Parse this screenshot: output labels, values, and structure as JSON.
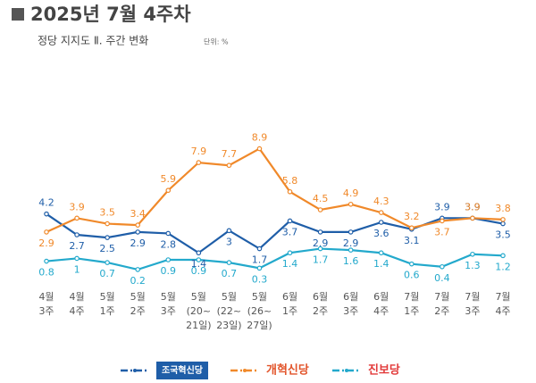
{
  "chart_data": {
    "type": "line",
    "title": "2025년 7월 4주차",
    "subtitle": "정당 지지도 Ⅱ. 주간 변화",
    "unit": "단위: %",
    "categories": [
      "4월\n3주",
      "4월\n4주",
      "5월\n1주",
      "5월\n2주",
      "5월\n3주",
      "5월\n(20~\n21일)",
      "5월\n(22~\n23일)",
      "5월\n(26~\n27일)",
      "6월\n1주",
      "6월\n2주",
      "6월\n3주",
      "6월\n4주",
      "7월\n1주",
      "7월\n2주",
      "7월\n3주",
      "7월\n4주"
    ],
    "ylim": [
      0,
      9
    ],
    "series": [
      {
        "name": "조국혁신당",
        "color": "#1f5ea8",
        "values": [
          4.2,
          2.7,
          2.5,
          2.9,
          2.8,
          1.4,
          3.0,
          1.7,
          3.7,
          2.9,
          2.9,
          3.6,
          3.1,
          3.9,
          3.9,
          3.5
        ]
      },
      {
        "name": "개혁신당",
        "color": "#f0892a",
        "values": [
          2.9,
          3.9,
          3.5,
          3.4,
          5.9,
          7.9,
          7.7,
          8.9,
          5.8,
          4.5,
          4.9,
          4.3,
          3.2,
          3.7,
          3.9,
          3.8
        ]
      },
      {
        "name": "진보당",
        "color": "#23a9cc",
        "values": [
          0.8,
          1.0,
          0.7,
          0.2,
          0.9,
          0.9,
          0.7,
          0.3,
          1.4,
          1.7,
          1.6,
          1.4,
          0.6,
          0.4,
          1.3,
          1.2
        ]
      }
    ]
  }
}
